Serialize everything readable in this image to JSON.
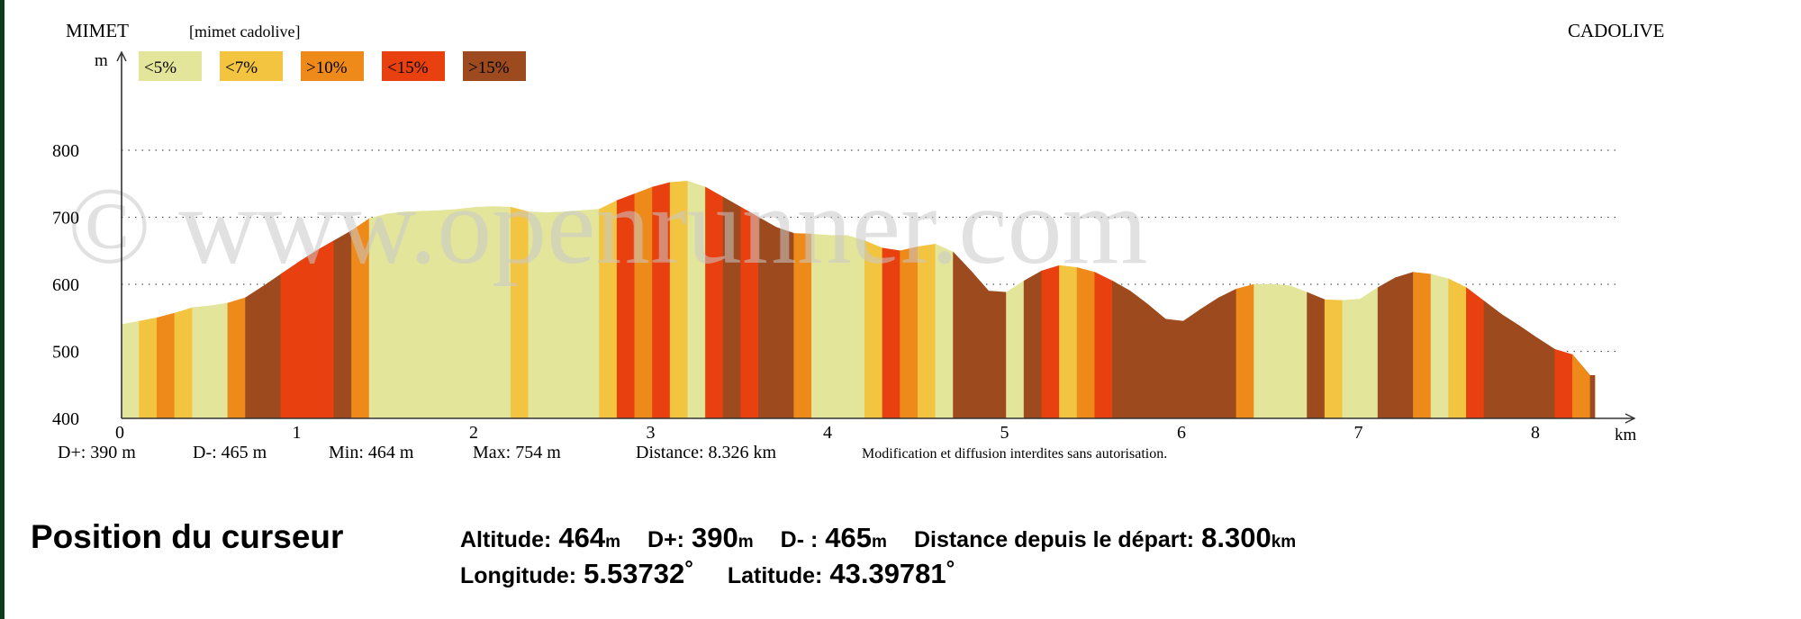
{
  "header": {
    "start_label": "MIMET",
    "route_label": "[mimet cadolive]",
    "end_label": "CADOLIVE"
  },
  "watermark": "© www.openrunner.com",
  "legend": [
    {
      "label": "<5%",
      "color": "#e3e59b"
    },
    {
      "label": "<7%",
      "color": "#f2c440"
    },
    {
      "label": ">10%",
      "color": "#ee8a1a"
    },
    {
      "label": "<15%",
      "color": "#e8400f"
    },
    {
      "label": ">15%",
      "color": "#9c4a1e"
    }
  ],
  "chart_data": {
    "type": "area",
    "title": "",
    "xlabel": "km",
    "ylabel": "m",
    "xlim": [
      0,
      8.326
    ],
    "ylim": [
      400,
      820
    ],
    "x_ticks": [
      "0",
      "1",
      "2",
      "3",
      "4",
      "5",
      "6",
      "7",
      "8"
    ],
    "y_ticks": [
      "400",
      "500",
      "600",
      "700",
      "800"
    ],
    "grid": "horizontal dotted",
    "legend_position": "top-left",
    "points": [
      [
        0,
        540
      ],
      [
        0.1,
        545
      ],
      [
        0.2,
        550
      ],
      [
        0.3,
        557
      ],
      [
        0.4,
        565
      ],
      [
        0.5,
        568
      ],
      [
        0.6,
        572
      ],
      [
        0.7,
        580
      ],
      [
        0.8,
        597
      ],
      [
        0.9,
        615
      ],
      [
        1.0,
        633
      ],
      [
        1.1,
        650
      ],
      [
        1.2,
        665
      ],
      [
        1.3,
        680
      ],
      [
        1.4,
        698
      ],
      [
        1.5,
        705
      ],
      [
        1.6,
        708
      ],
      [
        1.7,
        709
      ],
      [
        1.8,
        710
      ],
      [
        1.9,
        712
      ],
      [
        2.0,
        715
      ],
      [
        2.1,
        716
      ],
      [
        2.2,
        715
      ],
      [
        2.3,
        708
      ],
      [
        2.4,
        707
      ],
      [
        2.5,
        708
      ],
      [
        2.6,
        710
      ],
      [
        2.7,
        712
      ],
      [
        2.8,
        725
      ],
      [
        2.9,
        735
      ],
      [
        3.0,
        745
      ],
      [
        3.1,
        752
      ],
      [
        3.2,
        754
      ],
      [
        3.3,
        745
      ],
      [
        3.4,
        730
      ],
      [
        3.5,
        715
      ],
      [
        3.6,
        700
      ],
      [
        3.7,
        685
      ],
      [
        3.8,
        676
      ],
      [
        3.9,
        675
      ],
      [
        4.0,
        673
      ],
      [
        4.1,
        673
      ],
      [
        4.2,
        665
      ],
      [
        4.3,
        654
      ],
      [
        4.4,
        650
      ],
      [
        4.5,
        656
      ],
      [
        4.6,
        660
      ],
      [
        4.7,
        648
      ],
      [
        4.8,
        620
      ],
      [
        4.9,
        590
      ],
      [
        5.0,
        588
      ],
      [
        5.1,
        605
      ],
      [
        5.2,
        620
      ],
      [
        5.3,
        628
      ],
      [
        5.4,
        625
      ],
      [
        5.5,
        618
      ],
      [
        5.6,
        605
      ],
      [
        5.7,
        590
      ],
      [
        5.8,
        570
      ],
      [
        5.9,
        548
      ],
      [
        6.0,
        545
      ],
      [
        6.1,
        563
      ],
      [
        6.2,
        580
      ],
      [
        6.3,
        593
      ],
      [
        6.4,
        600
      ],
      [
        6.5,
        600
      ],
      [
        6.6,
        598
      ],
      [
        6.7,
        588
      ],
      [
        6.8,
        577
      ],
      [
        6.9,
        576
      ],
      [
        7.0,
        578
      ],
      [
        7.1,
        595
      ],
      [
        7.2,
        610
      ],
      [
        7.3,
        618
      ],
      [
        7.4,
        615
      ],
      [
        7.5,
        608
      ],
      [
        7.6,
        595
      ],
      [
        7.7,
        575
      ],
      [
        7.8,
        555
      ],
      [
        7.9,
        538
      ],
      [
        8.0,
        520
      ],
      [
        8.1,
        503
      ],
      [
        8.2,
        495
      ],
      [
        8.3,
        464
      ],
      [
        8.326,
        464
      ]
    ],
    "slope_classes": [
      0,
      1,
      2,
      1,
      0,
      0,
      2,
      4,
      4,
      3,
      3,
      3,
      4,
      2,
      0,
      0,
      0,
      0,
      0,
      0,
      0,
      0,
      1,
      0,
      0,
      0,
      0,
      1,
      3,
      2,
      3,
      1,
      0,
      3,
      4,
      3,
      4,
      4,
      2,
      0,
      0,
      0,
      1,
      3,
      2,
      1,
      0,
      4,
      4,
      4,
      0,
      4,
      3,
      1,
      2,
      3,
      4,
      4,
      4,
      4,
      4,
      4,
      4,
      2,
      0,
      0,
      0,
      4,
      1,
      0,
      0,
      4,
      4,
      2,
      0,
      1,
      3,
      4,
      4,
      4,
      4,
      3,
      2,
      4
    ]
  },
  "stats": {
    "d_plus": "D+: 390 m",
    "d_minus": "D-: 465 m",
    "min": "Min: 464 m",
    "max": "Max: 754 m",
    "distance": "Distance: 8.326 km",
    "notice": "Modification et diffusion interdites sans autorisation."
  },
  "cursor": {
    "title": "Position du curseur",
    "altitude_label": "Altitude:",
    "altitude_value": "464",
    "altitude_unit": "m",
    "dplus_label": "D+:",
    "dplus_value": "390",
    "dplus_unit": "m",
    "dminus_label": "D- :",
    "dminus_value": "465",
    "dminus_unit": "m",
    "distance_label": "Distance depuis le départ:",
    "distance_value": "8.300",
    "distance_unit": "km",
    "longitude_label": "Longitude:",
    "longitude_value": "5.53732",
    "latitude_label": "Latitude:",
    "latitude_value": "43.39781",
    "degree_symbol": "°"
  }
}
